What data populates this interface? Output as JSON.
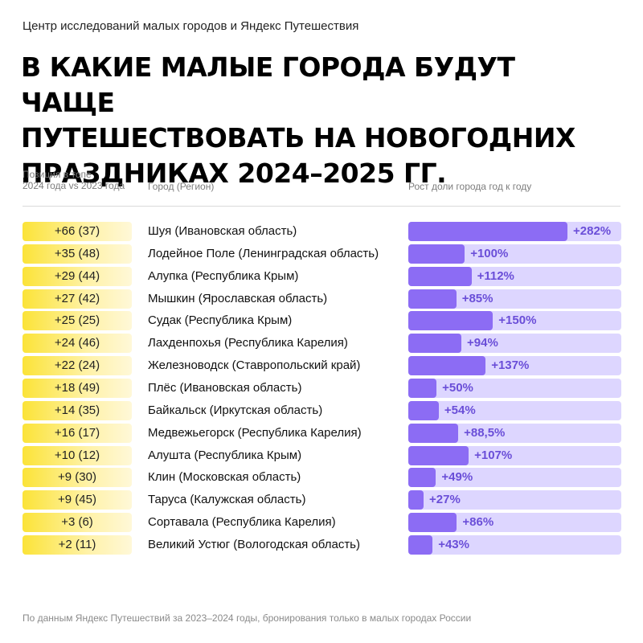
{
  "header": {
    "source": "Центр исследований малых городов и Яндекс Путешествия",
    "title_lines": [
      "В какие малые города будут чаще",
      "путешествовать на новогодних",
      "праздниках 2024–2025 гг."
    ]
  },
  "columns": {
    "position_line1": "Позиция в топе",
    "position_line2": "2024 года vs 2023 года",
    "city": "Город (Регион)",
    "growth": "Рост доли города год к году"
  },
  "footer": "По данным Яндекс Путешествий за 2023–2024 годы, бронирования только в малых городах России",
  "colors": {
    "bar": "#8c6cf4",
    "track": "#ddd6ff",
    "value": "#6a4ed8",
    "badge": "#fbe338"
  },
  "chart_data": {
    "type": "bar",
    "orientation": "horizontal",
    "xlim": [
      0,
      282
    ],
    "categories": [
      "Шуя (Ивановская область)",
      "Лодейное Поле (Ленинградская область)",
      "Алупка (Республика Крым)",
      "Мышкин (Ярославская область)",
      "Судак (Республика Крым)",
      "Лахденпохья (Республика Карелия)",
      "Железноводск (Ставропольский край)",
      "Плёс (Ивановская область)",
      "Байкальск (Иркутская область)",
      "Медвежьегорск (Республика Карелия)",
      "Алушта (Республика Крым)",
      "Клин (Московская область)",
      "Таруса (Калужская область)",
      "Сортавала (Республика Карелия)",
      "Великий Устюг (Вологодская область)"
    ],
    "positions": [
      "+66 (37)",
      "+35 (48)",
      "+29 (44)",
      "+27 (42)",
      "+25 (25)",
      "+24 (46)",
      "+22 (24)",
      "+18 (49)",
      "+14 (35)",
      "+16 (17)",
      "+10 (12)",
      "+9 (30)",
      "+9 (45)",
      "+3 (6)",
      "+2 (11)"
    ],
    "values": [
      282,
      100,
      112,
      85,
      150,
      94,
      137,
      50,
      54,
      88.5,
      107,
      49,
      27,
      86,
      43
    ],
    "labels": [
      "+282%",
      "+100%",
      "+112%",
      "+85%",
      "+150%",
      "+94%",
      "+137%",
      "+50%",
      "+54%",
      "+88,5%",
      "+107%",
      "+49%",
      "+27%",
      "+86%",
      "+43%"
    ]
  }
}
